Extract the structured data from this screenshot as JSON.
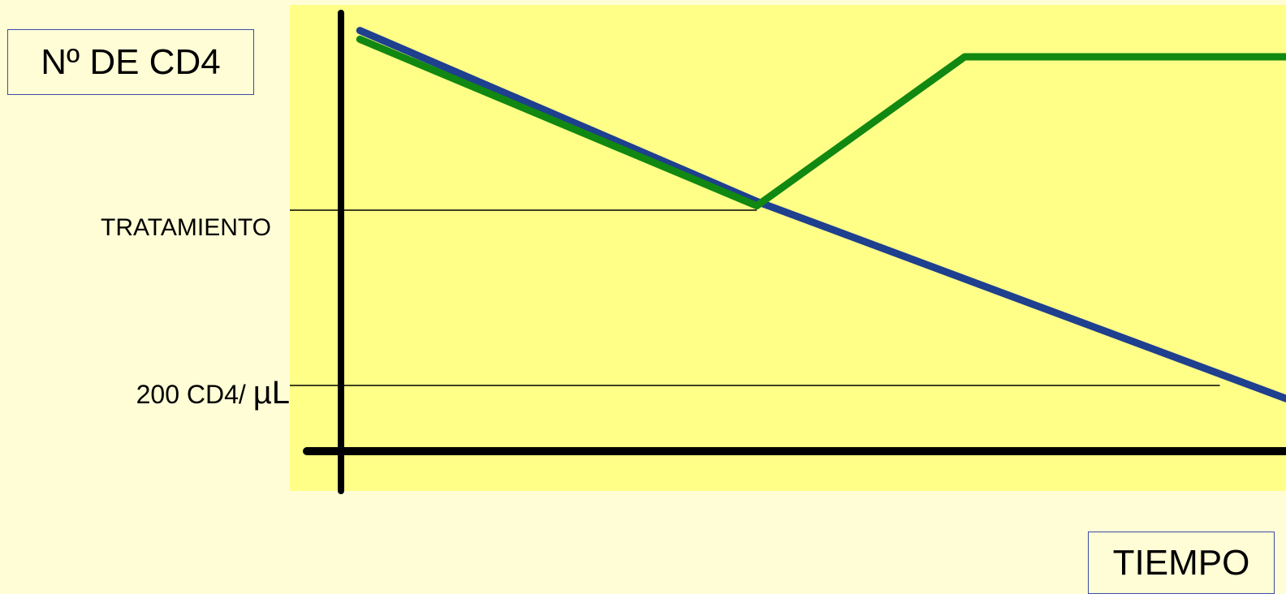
{
  "chart_data": {
    "type": "line",
    "ylabel": "Nº DE CD4",
    "xlabel": "TIEMPO",
    "xlim": [
      0,
      100
    ],
    "ylim": [
      0,
      100
    ],
    "reference_lines": [
      {
        "label": "TRATAMIENTO",
        "y": 55,
        "x_end": 44
      },
      {
        "label_text": "200 CD4/ ",
        "label_unit": "µL",
        "y": 15,
        "x_end": 93
      }
    ],
    "series": [
      {
        "color": "#1f3f8f",
        "points": [
          [
            2,
            96
          ],
          [
            44,
            57
          ],
          [
            100,
            12
          ]
        ]
      },
      {
        "color": "#118811",
        "points": [
          [
            2,
            94
          ],
          [
            44,
            56
          ],
          [
            66,
            90
          ],
          [
            100,
            90
          ]
        ]
      }
    ],
    "grid": false
  }
}
